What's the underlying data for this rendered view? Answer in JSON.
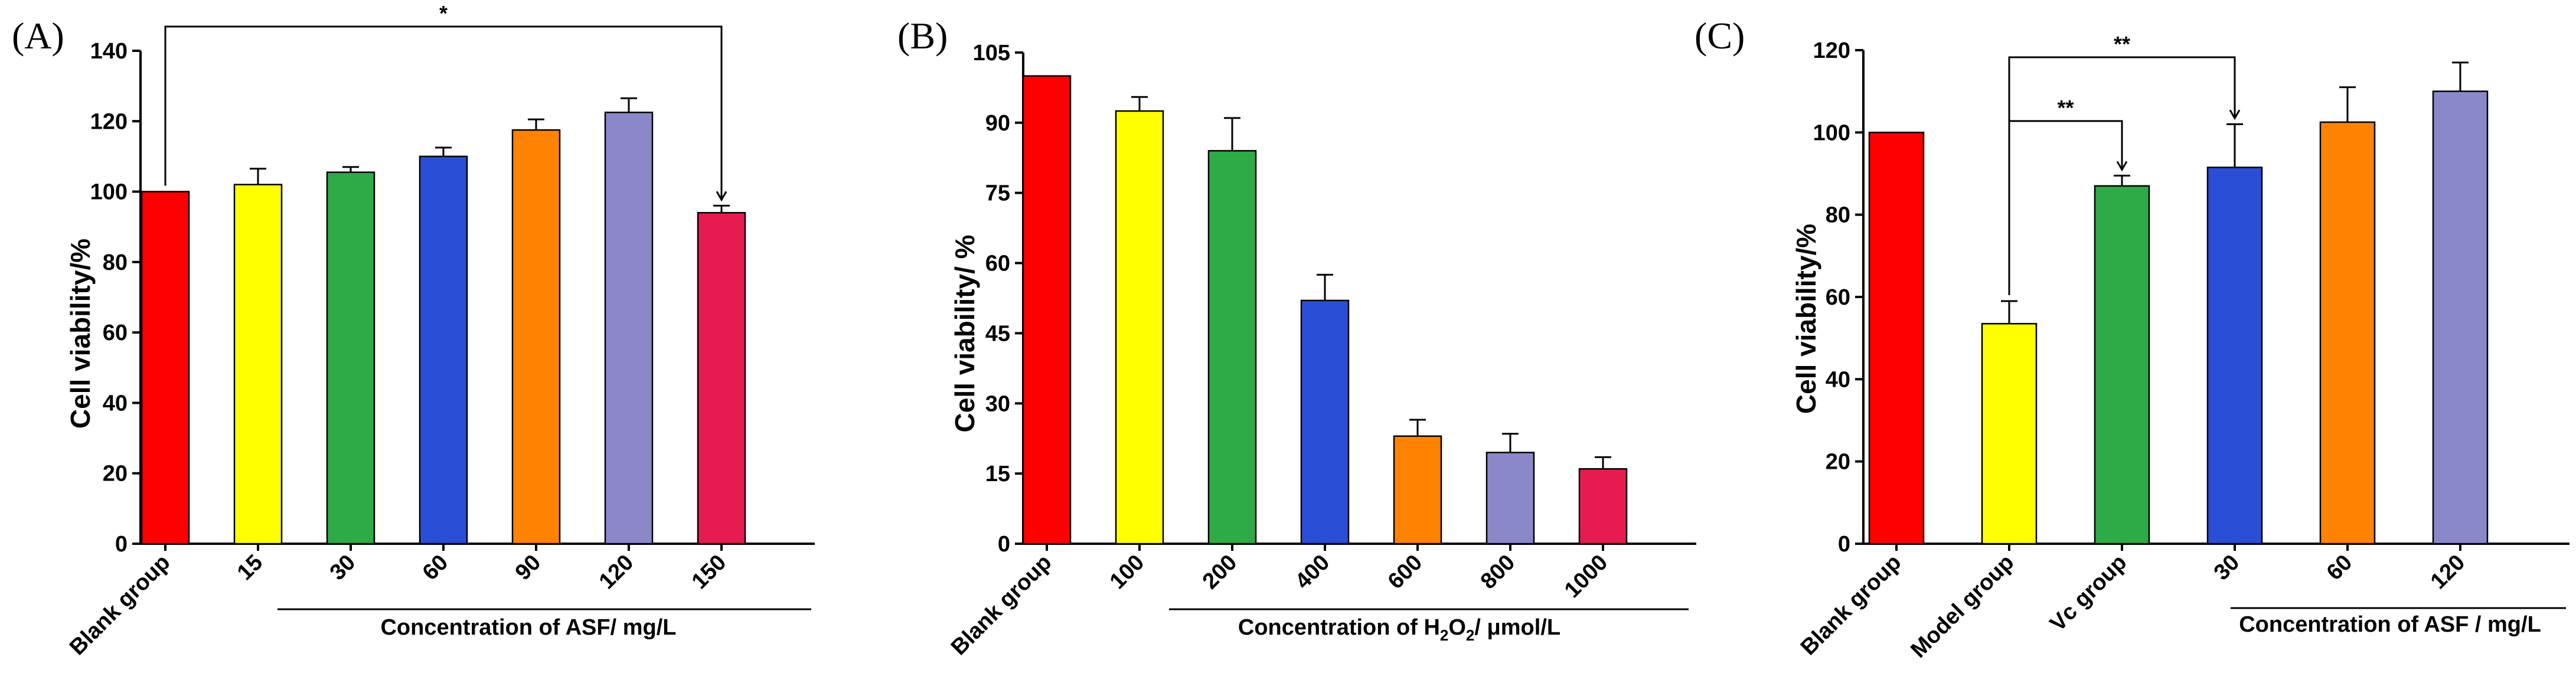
{
  "chart_data": [
    {
      "type": "bar",
      "panel": "(A)",
      "ylabel": "Cell viability/%",
      "ylim": [
        0,
        140
      ],
      "yticks": [
        0,
        20,
        40,
        60,
        80,
        100,
        120,
        140
      ],
      "categories": [
        "Blank group",
        "15",
        "30",
        "60",
        "90",
        "120",
        "150"
      ],
      "values": [
        100,
        102,
        105.5,
        110,
        117.5,
        122.5,
        94
      ],
      "errors": [
        0,
        4.5,
        1.5,
        2.5,
        3,
        4,
        2
      ],
      "colors": [
        "#ff0000",
        "#ffff00",
        "#2eaa46",
        "#2a4fd6",
        "#ff8200",
        "#8a88c8",
        "#e61c50"
      ],
      "xgroup_label": "Concentration of ASF/ mg/L",
      "significance": [
        {
          "from": 0,
          "to": 6,
          "label": "*"
        }
      ]
    },
    {
      "type": "bar",
      "panel": "(B)",
      "ylabel": "Cell viability/ %",
      "ylim": [
        0,
        105
      ],
      "yticks": [
        0,
        15,
        30,
        45,
        60,
        75,
        90,
        105
      ],
      "categories": [
        "Blank group",
        "100",
        "200",
        "400",
        "600",
        "800",
        "1000"
      ],
      "values": [
        100,
        92.5,
        84,
        52,
        23,
        19.5,
        16
      ],
      "errors": [
        0,
        3,
        7,
        5.5,
        3.5,
        4,
        2.5
      ],
      "colors": [
        "#ff0000",
        "#ffff00",
        "#2eaa46",
        "#2a4fd6",
        "#ff8200",
        "#8a88c8",
        "#e61c50"
      ],
      "xgroup_label": "Concentration of H2O2/ μmol/L",
      "significance": []
    },
    {
      "type": "bar",
      "panel": "(C)",
      "ylabel": "Cell viability/%",
      "ylim": [
        0,
        120
      ],
      "yticks": [
        0,
        20,
        40,
        60,
        80,
        100,
        120
      ],
      "categories": [
        "Blank group",
        "Model group",
        "Vc group",
        "30",
        "60",
        "120"
      ],
      "values": [
        100,
        53.5,
        87,
        91.5,
        102.5,
        110
      ],
      "errors": [
        0,
        5.5,
        2.5,
        10.5,
        8.5,
        7
      ],
      "colors": [
        "#ff0000",
        "#ffff00",
        "#2eaa46",
        "#2a4fd6",
        "#ff8200",
        "#8a88c8"
      ],
      "xgroup_label": "Concentration of ASF / mg/L",
      "significance": [
        {
          "from": 1,
          "to": 2,
          "label": "**"
        },
        {
          "from": 1,
          "to": 3,
          "label": "**"
        }
      ]
    }
  ]
}
